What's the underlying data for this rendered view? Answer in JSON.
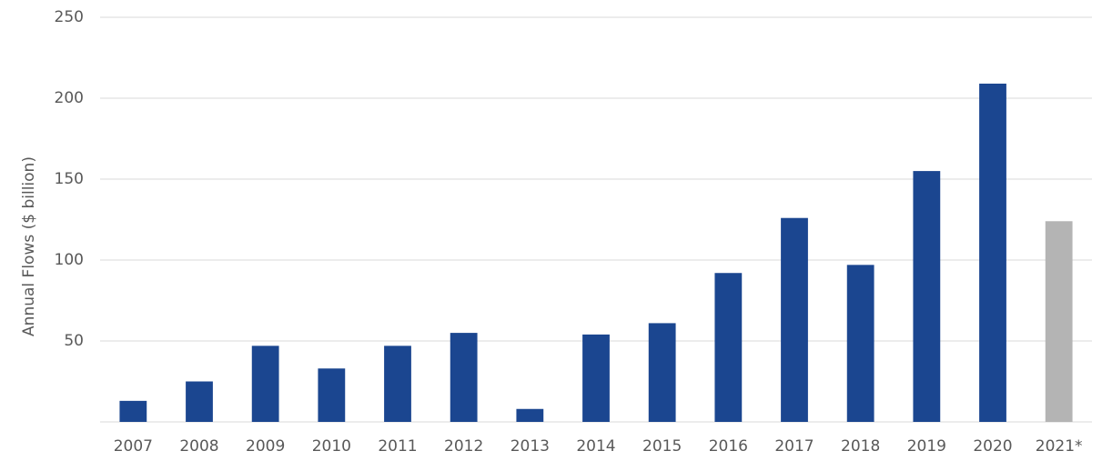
{
  "chart_data": {
    "type": "bar",
    "y_label": "Annual Flows ($ billion)",
    "categories": [
      "2007",
      "2008",
      "2009",
      "2010",
      "2011",
      "2012",
      "2013",
      "2014",
      "2015",
      "2016",
      "2017",
      "2018",
      "2019",
      "2020",
      "2021*"
    ],
    "values": [
      13,
      25,
      47,
      33,
      47,
      55,
      8,
      54,
      61,
      92,
      126,
      97,
      155,
      209,
      124
    ],
    "colors": [
      "#1b4690",
      "#1b4690",
      "#1b4690",
      "#1b4690",
      "#1b4690",
      "#1b4690",
      "#1b4690",
      "#1b4690",
      "#1b4690",
      "#1b4690",
      "#1b4690",
      "#1b4690",
      "#1b4690",
      "#1b4690",
      "#b4b4b4"
    ],
    "ylim": [
      0,
      250
    ],
    "yticks": [
      50,
      100,
      150,
      200,
      250
    ],
    "grid": true
  }
}
